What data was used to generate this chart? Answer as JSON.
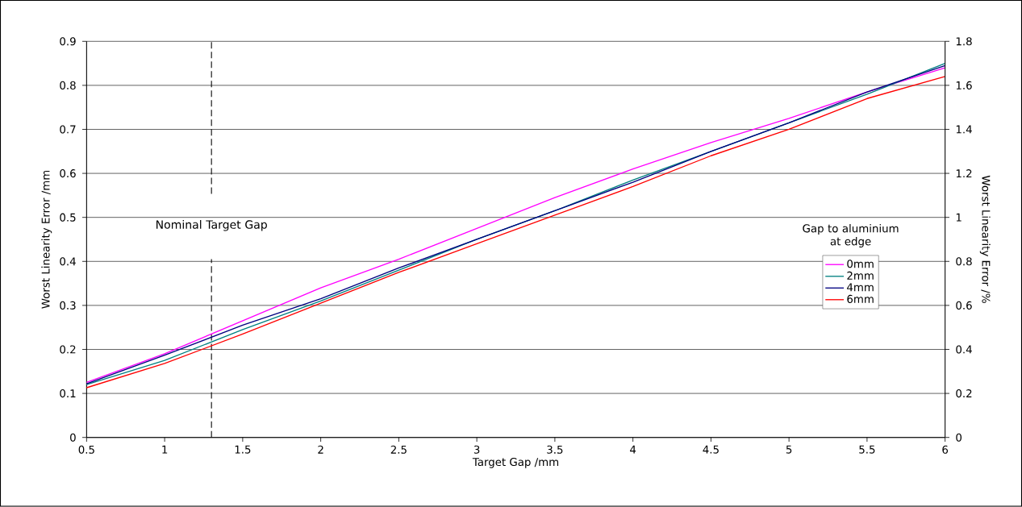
{
  "chart_data": {
    "type": "line",
    "xlabel": "Target Gap /mm",
    "ylabel": "Worst Linearity Error /mm",
    "y2label": "Worst Linearity Error /%",
    "legend_title": "Gap to aluminium at edge",
    "x": [
      0.5,
      1,
      1.5,
      2,
      2.5,
      3,
      3.5,
      4,
      4.5,
      5,
      5.5,
      6
    ],
    "series": [
      {
        "name": "0mm",
        "color": "#ff00ff",
        "values": [
          0.125,
          0.19,
          0.265,
          0.34,
          0.405,
          0.475,
          0.545,
          0.61,
          0.67,
          0.725,
          0.785,
          0.84
        ]
      },
      {
        "name": "2mm",
        "color": "#008080",
        "values": [
          0.12,
          0.175,
          0.245,
          0.31,
          0.38,
          0.45,
          0.515,
          0.585,
          0.65,
          0.715,
          0.78,
          0.85
        ]
      },
      {
        "name": "4mm",
        "color": "#000080",
        "values": [
          0.122,
          0.187,
          0.255,
          0.315,
          0.385,
          0.45,
          0.515,
          0.58,
          0.65,
          0.715,
          0.785,
          0.845
        ]
      },
      {
        "name": "6mm",
        "color": "#ff0000",
        "values": [
          0.113,
          0.168,
          0.235,
          0.305,
          0.375,
          0.44,
          0.505,
          0.57,
          0.64,
          0.7,
          0.77,
          0.82
        ]
      }
    ],
    "xlim": [
      0.5,
      6
    ],
    "xticks": [
      0.5,
      1,
      1.5,
      2,
      2.5,
      3,
      3.5,
      4,
      4.5,
      5,
      5.5,
      6
    ],
    "ylim": [
      0,
      0.9
    ],
    "yticks": [
      0,
      0.1,
      0.2,
      0.3,
      0.4,
      0.5,
      0.6,
      0.7,
      0.8,
      0.9
    ],
    "y2lim": [
      0,
      1.8
    ],
    "y2ticks": [
      0,
      0.2,
      0.4,
      0.6,
      0.8,
      1,
      1.2,
      1.4,
      1.6,
      1.8
    ],
    "ref_lines": [
      {
        "axis": "x",
        "value": 1.3,
        "label": "Nominal Target Gap",
        "color": "#000000",
        "line_style": "dashed"
      }
    ],
    "grid": "y",
    "legend": "right",
    "marker": "none",
    "line_style": "solid"
  }
}
